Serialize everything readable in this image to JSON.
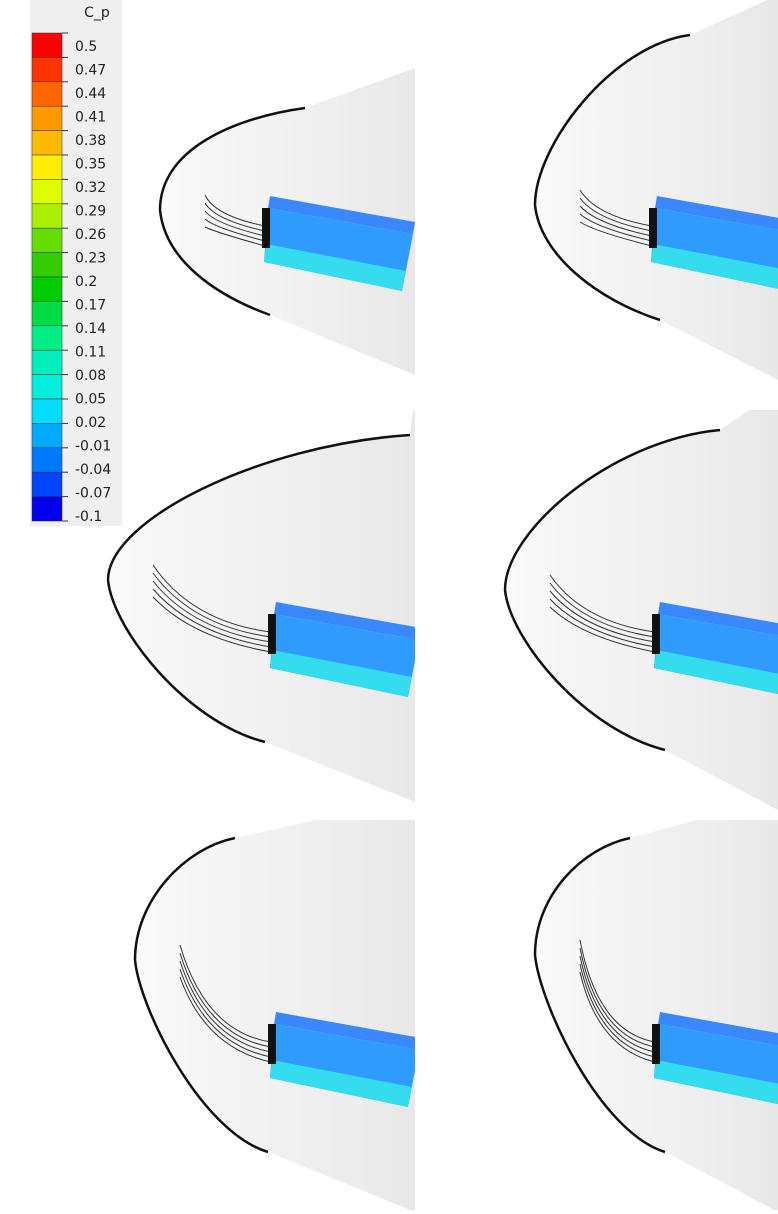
{
  "colorbar": {
    "title": "C_p",
    "levels": [
      0.5,
      0.47,
      0.44,
      0.41,
      0.38,
      0.35,
      0.32,
      0.29,
      0.26,
      0.23,
      0.2,
      0.17,
      0.14,
      0.11,
      0.08,
      0.05,
      0.02,
      -0.01,
      -0.04,
      -0.07,
      -0.1
    ],
    "colors": [
      "#ff0000",
      "#ff3300",
      "#ff6600",
      "#ff9900",
      "#ffbb00",
      "#ffee00",
      "#ddff00",
      "#aaee00",
      "#66dd00",
      "#33cc00",
      "#00cc00",
      "#00dd44",
      "#00ee88",
      "#00eebb",
      "#00eedd",
      "#00ddff",
      "#00aaff",
      "#0077ff",
      "#0044ff",
      "#0000ee"
    ]
  }
}
